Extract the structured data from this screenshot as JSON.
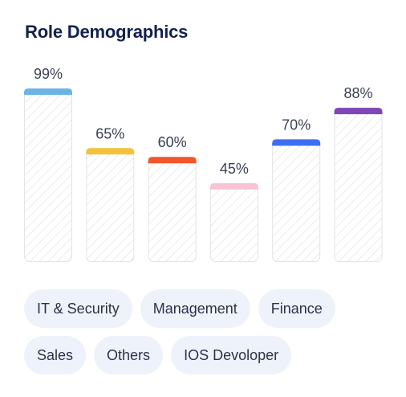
{
  "title": "Role Demographics",
  "chart_data": {
    "type": "bar",
    "categories": [
      "IT & Security",
      "Management",
      "Finance",
      "Sales",
      "Others",
      "IOS Devoloper"
    ],
    "values": [
      99,
      65,
      60,
      45,
      70,
      88
    ],
    "value_labels": [
      "99%",
      "65%",
      "60%",
      "45%",
      "70%",
      "88%"
    ],
    "colors": [
      "#6db3e4",
      "#f5c33b",
      "#f2562b",
      "#f9c3d6",
      "#3d6ef0",
      "#7e46b7"
    ],
    "ylim": [
      0,
      100
    ],
    "grid": false,
    "legend": "bottom"
  },
  "tags": [
    "IT & Security",
    "Management",
    "Finance",
    "Sales",
    "Others",
    "IOS Devoloper"
  ]
}
